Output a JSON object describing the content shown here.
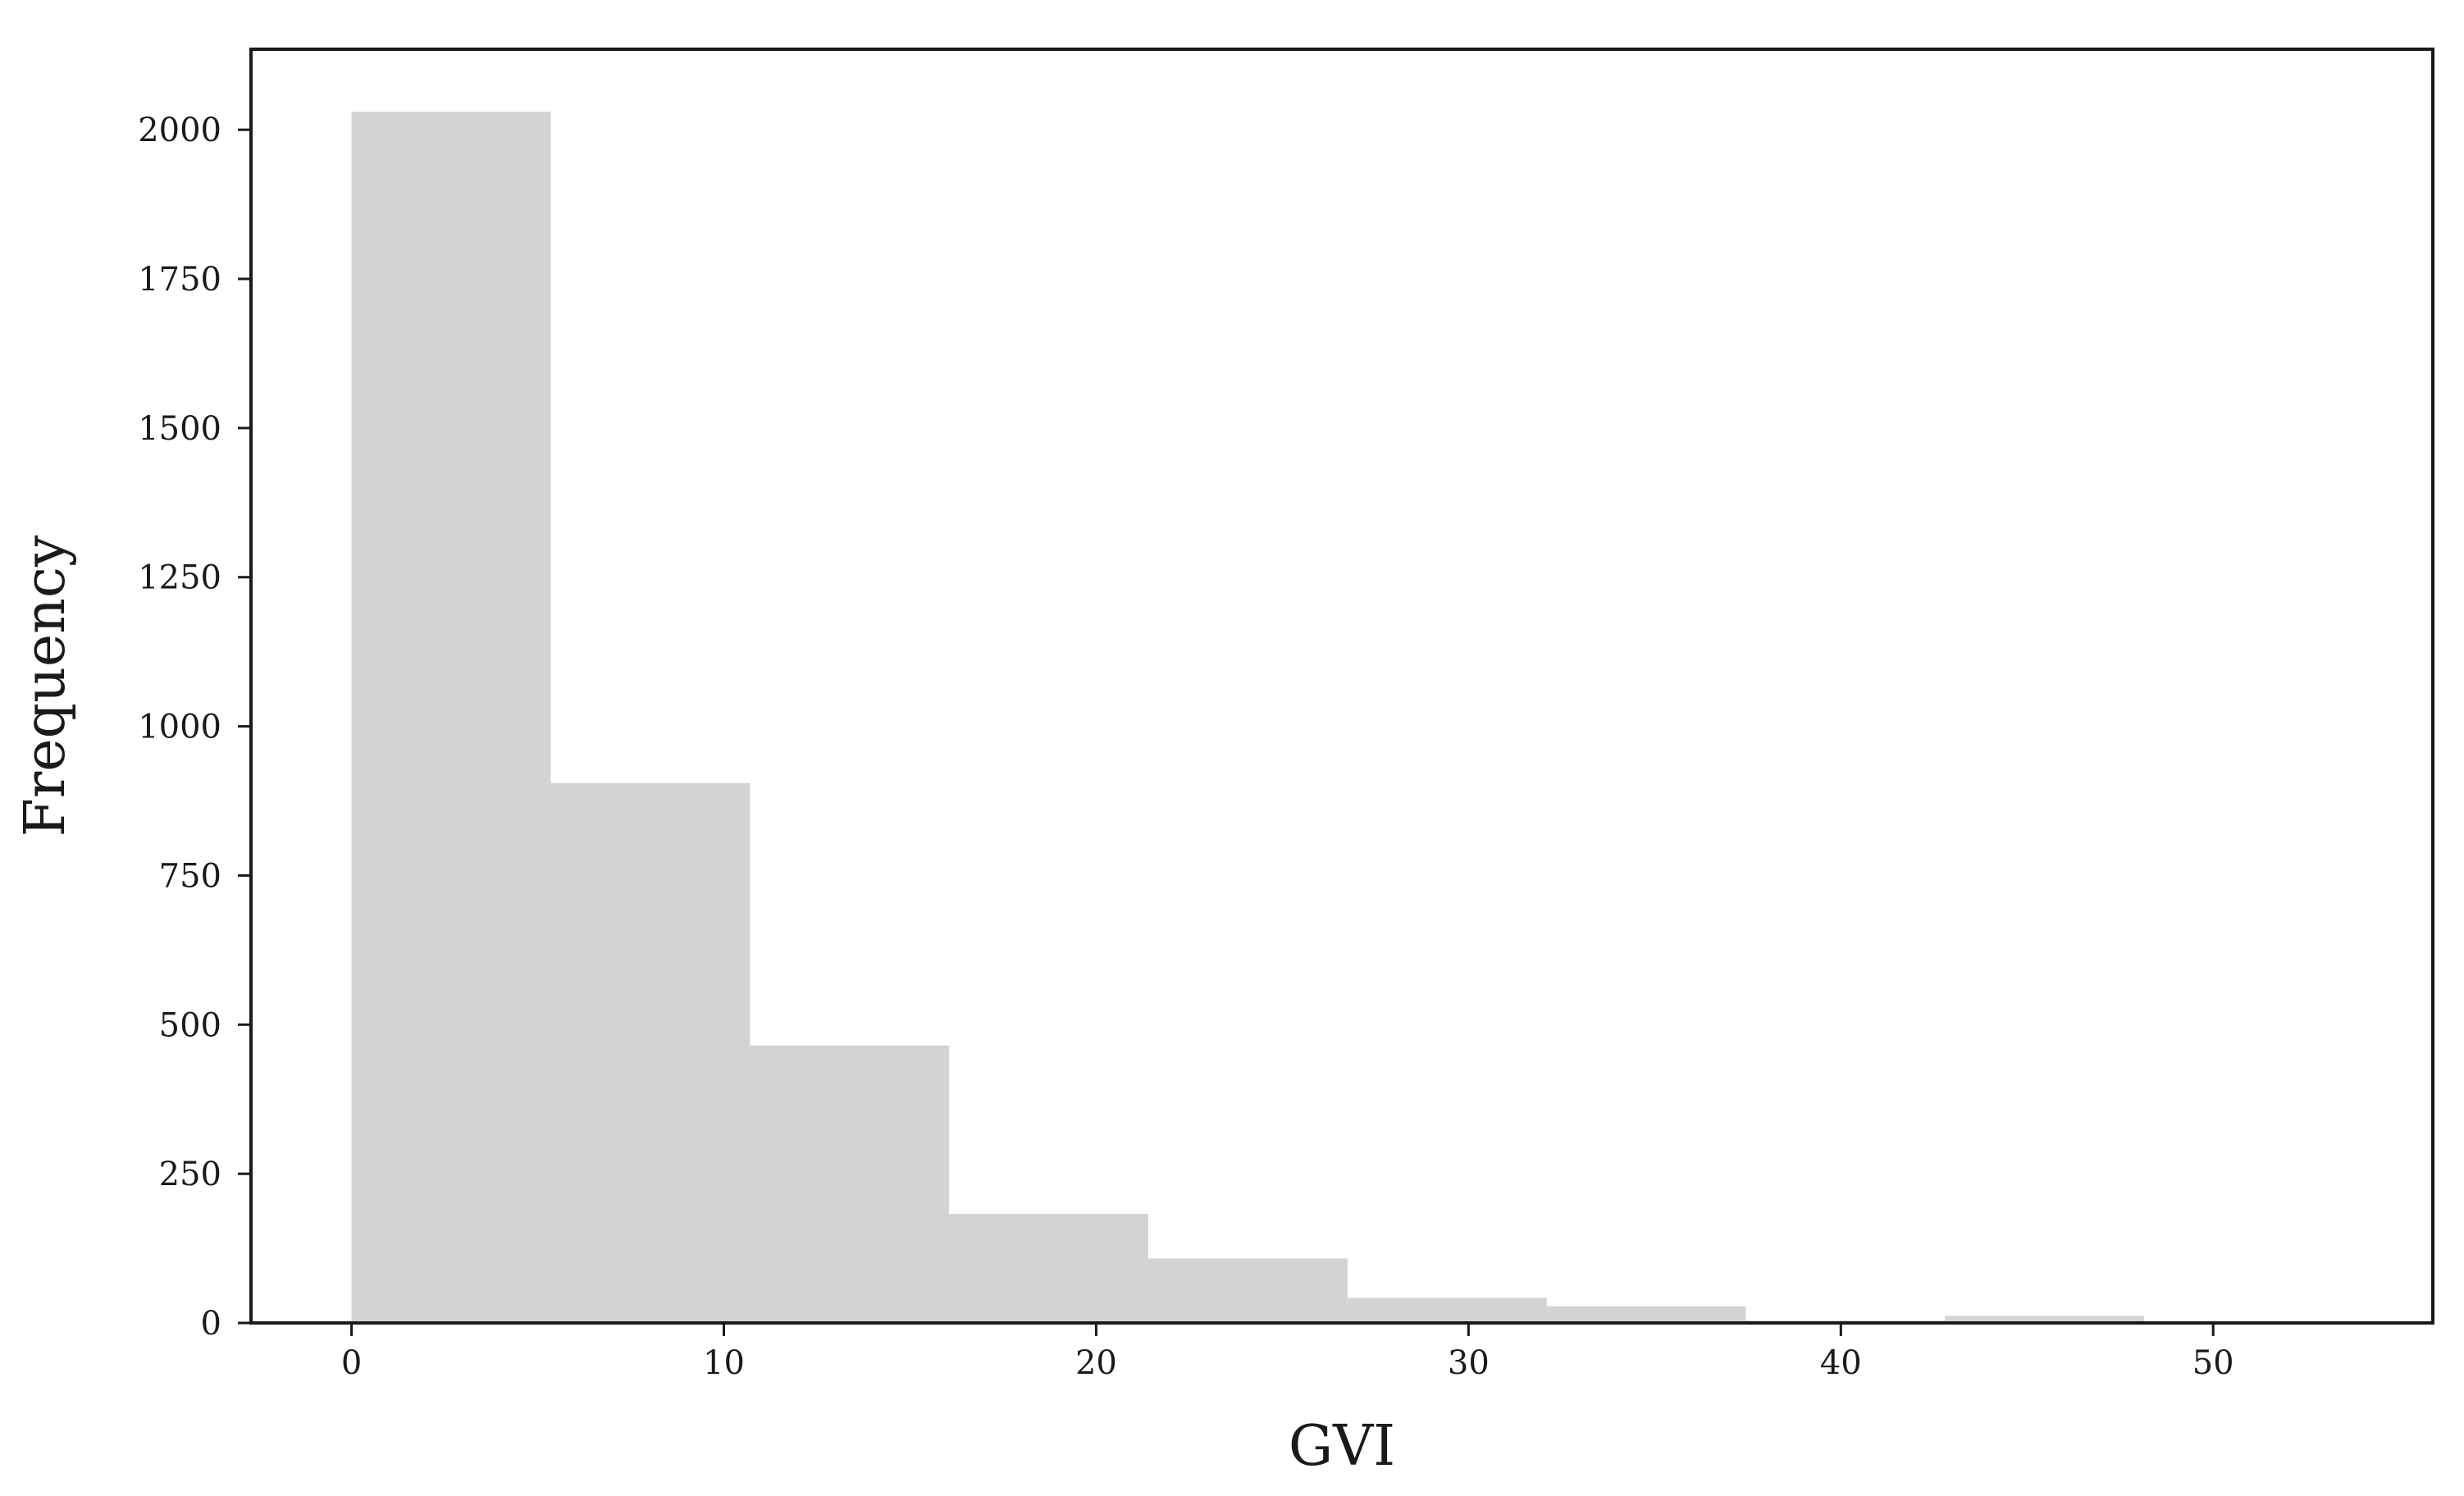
{
  "chart_data": {
    "type": "bar",
    "title": "",
    "xlabel": "GVI",
    "ylabel": "Frequency",
    "bin_edges": [
      0,
      5.35,
      10.7,
      16.05,
      21.4,
      26.75,
      32.1,
      37.45,
      42.8,
      48.15
    ],
    "values": [
      2030,
      905,
      465,
      183,
      108,
      42,
      28,
      4,
      12
    ],
    "bar_color": "#d3d3d3",
    "xlim": [
      -2.7,
      55.9
    ],
    "ylim": [
      0,
      2135
    ],
    "x_ticks": [
      0,
      10,
      20,
      30,
      40,
      50
    ],
    "x_tick_labels": [
      "0",
      "10",
      "20",
      "30",
      "40",
      "50"
    ],
    "y_ticks": [
      0,
      250,
      500,
      750,
      1000,
      1250,
      1500,
      1750,
      2000
    ],
    "y_tick_labels": [
      "0",
      "250",
      "500",
      "750",
      "1000",
      "1250",
      "1500",
      "1750",
      "2000"
    ],
    "grid": false,
    "legend": "none"
  }
}
